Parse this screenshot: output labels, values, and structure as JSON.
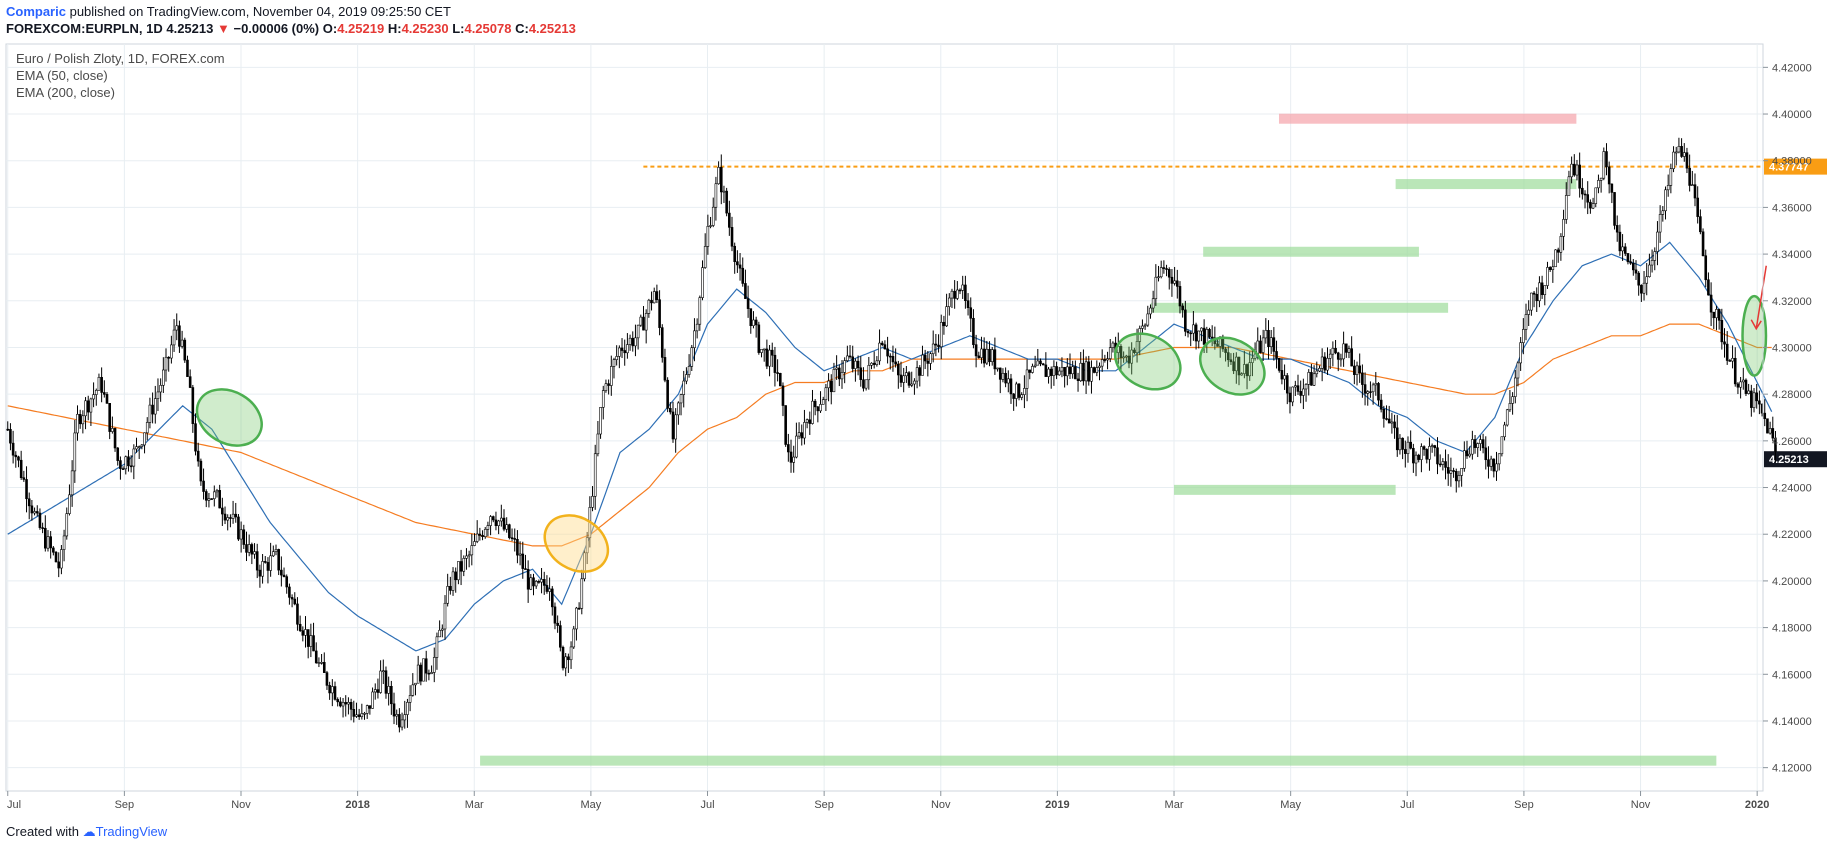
{
  "header": {
    "author": "Comparic",
    "published": "published on TradingView.com, November 04, 2019 09:25:50 CET"
  },
  "quote": {
    "symbol": "FOREXCOM:EURPLN, 1D",
    "last": "4.25213",
    "change": "−0.00006 (0%)",
    "o_label": "O:",
    "o": "4.25219",
    "h_label": "H:",
    "h": "4.25230",
    "l_label": "L:",
    "l": "4.25078",
    "c_label": "C:",
    "c": "4.25213"
  },
  "legend": {
    "title": "Euro / Polish Zloty, 1D, FOREX.com",
    "ema50": "EMA (50, close)",
    "ema200": "EMA (200, close)"
  },
  "footer": {
    "created": "Created with",
    "brand": "TradingView"
  },
  "colors": {
    "candle": "#000000",
    "ema50": "#2e6fb5",
    "ema200": "#f57c21",
    "grid": "#e8eef2",
    "zone_green": "#9ddc9a",
    "zone_red": "#f5a3aa",
    "hline": "#f99d14",
    "arrow": "#e53935"
  },
  "chart_data": {
    "type": "candlestick",
    "y_range": [
      4.11,
      4.43
    ],
    "y_ticks": [
      "4.42000",
      "4.40000",
      "4.38000",
      "4.36000",
      "4.34000",
      "4.32000",
      "4.30000",
      "4.28000",
      "4.26000",
      "4.24000",
      "4.22000",
      "4.20000",
      "4.18000",
      "4.16000",
      "4.14000",
      "4.12000"
    ],
    "x_ticks": [
      "Jul",
      "Sep",
      "Nov",
      "2018",
      "Mar",
      "May",
      "Jul",
      "Sep",
      "Nov",
      "2019",
      "Mar",
      "May",
      "Jul",
      "Sep",
      "Nov",
      "2020"
    ],
    "x_tick_months": [
      -6,
      -4,
      -2,
      0,
      2,
      4,
      6,
      8,
      10,
      12,
      14,
      16,
      18,
      20,
      22,
      24
    ],
    "x_range_months": [
      -6.03,
      24.1
    ],
    "price_anchors": [
      [
        -6.0,
        4.265
      ],
      [
        -5.5,
        4.225
      ],
      [
        -5.1,
        4.205
      ],
      [
        -4.8,
        4.27
      ],
      [
        -4.4,
        4.285
      ],
      [
        -4.1,
        4.25
      ],
      [
        -3.8,
        4.255
      ],
      [
        -3.3,
        4.29
      ],
      [
        -3.1,
        4.31
      ],
      [
        -2.9,
        4.285
      ],
      [
        -2.7,
        4.24
      ],
      [
        -2.4,
        4.235
      ],
      [
        -2.0,
        4.22
      ],
      [
        -1.7,
        4.205
      ],
      [
        -1.4,
        4.21
      ],
      [
        -1.1,
        4.19
      ],
      [
        -0.6,
        4.16
      ],
      [
        -0.3,
        4.15
      ],
      [
        0.1,
        4.14
      ],
      [
        0.4,
        4.16
      ],
      [
        0.7,
        4.14
      ],
      [
        1.0,
        4.16
      ],
      [
        1.3,
        4.165
      ],
      [
        1.6,
        4.2
      ],
      [
        1.9,
        4.21
      ],
      [
        2.3,
        4.23
      ],
      [
        2.7,
        4.215
      ],
      [
        3.0,
        4.195
      ],
      [
        3.3,
        4.2
      ],
      [
        3.5,
        4.165
      ],
      [
        3.7,
        4.175
      ],
      [
        3.9,
        4.21
      ],
      [
        4.2,
        4.28
      ],
      [
        4.5,
        4.3
      ],
      [
        4.8,
        4.305
      ],
      [
        5.1,
        4.325
      ],
      [
        5.4,
        4.26
      ],
      [
        5.8,
        4.31
      ],
      [
        6.0,
        4.35
      ],
      [
        6.2,
        4.375
      ],
      [
        6.35,
        4.355
      ],
      [
        6.6,
        4.325
      ],
      [
        6.9,
        4.3
      ],
      [
        7.2,
        4.29
      ],
      [
        7.4,
        4.25
      ],
      [
        7.7,
        4.27
      ],
      [
        8.0,
        4.28
      ],
      [
        8.4,
        4.295
      ],
      [
        8.7,
        4.285
      ],
      [
        9.0,
        4.305
      ],
      [
        9.3,
        4.285
      ],
      [
        9.6,
        4.29
      ],
      [
        9.9,
        4.3
      ],
      [
        10.3,
        4.33
      ],
      [
        10.6,
        4.3
      ],
      [
        10.9,
        4.295
      ],
      [
        11.3,
        4.28
      ],
      [
        11.6,
        4.29
      ],
      [
        11.9,
        4.29
      ],
      [
        12.2,
        4.29
      ],
      [
        12.6,
        4.29
      ],
      [
        12.9,
        4.3
      ],
      [
        13.2,
        4.295
      ],
      [
        13.5,
        4.31
      ],
      [
        13.8,
        4.335
      ],
      [
        14.0,
        4.33
      ],
      [
        14.2,
        4.31
      ],
      [
        14.5,
        4.305
      ],
      [
        14.8,
        4.3
      ],
      [
        15.2,
        4.29
      ],
      [
        15.6,
        4.305
      ],
      [
        16.0,
        4.28
      ],
      [
        16.3,
        4.285
      ],
      [
        16.6,
        4.295
      ],
      [
        16.9,
        4.3
      ],
      [
        17.2,
        4.285
      ],
      [
        17.5,
        4.28
      ],
      [
        17.8,
        4.26
      ],
      [
        18.1,
        4.255
      ],
      [
        18.4,
        4.255
      ],
      [
        18.8,
        4.245
      ],
      [
        19.1,
        4.26
      ],
      [
        19.5,
        4.25
      ],
      [
        19.8,
        4.28
      ],
      [
        20.1,
        4.32
      ],
      [
        20.4,
        4.33
      ],
      [
        20.6,
        4.345
      ],
      [
        20.8,
        4.38
      ],
      [
        21.0,
        4.37
      ],
      [
        21.2,
        4.36
      ],
      [
        21.4,
        4.385
      ],
      [
        21.6,
        4.345
      ],
      [
        21.8,
        4.335
      ],
      [
        22.0,
        4.325
      ],
      [
        22.2,
        4.34
      ],
      [
        22.4,
        4.36
      ],
      [
        22.6,
        4.385
      ],
      [
        22.8,
        4.38
      ],
      [
        23.0,
        4.35
      ],
      [
        23.2,
        4.32
      ],
      [
        23.4,
        4.305
      ],
      [
        23.6,
        4.29
      ],
      [
        23.8,
        4.28
      ],
      [
        24.0,
        4.275
      ],
      [
        24.2,
        4.265
      ],
      [
        24.35,
        4.252
      ]
    ],
    "ema50_anchors": [
      [
        -6.0,
        4.22
      ],
      [
        -5.0,
        4.235
      ],
      [
        -4.0,
        4.25
      ],
      [
        -3.0,
        4.275
      ],
      [
        -2.5,
        4.265
      ],
      [
        -2.0,
        4.245
      ],
      [
        -1.5,
        4.225
      ],
      [
        -1.0,
        4.21
      ],
      [
        -0.5,
        4.195
      ],
      [
        0.0,
        4.185
      ],
      [
        1.0,
        4.17
      ],
      [
        1.5,
        4.175
      ],
      [
        2.0,
        4.19
      ],
      [
        2.5,
        4.2
      ],
      [
        3.0,
        4.205
      ],
      [
        3.5,
        4.19
      ],
      [
        4.0,
        4.22
      ],
      [
        4.5,
        4.255
      ],
      [
        5.0,
        4.265
      ],
      [
        5.5,
        4.28
      ],
      [
        6.0,
        4.31
      ],
      [
        6.5,
        4.325
      ],
      [
        7.0,
        4.315
      ],
      [
        7.5,
        4.3
      ],
      [
        8.0,
        4.29
      ],
      [
        8.5,
        4.295
      ],
      [
        9.0,
        4.3
      ],
      [
        9.5,
        4.295
      ],
      [
        10.0,
        4.3
      ],
      [
        10.5,
        4.305
      ],
      [
        11.0,
        4.3
      ],
      [
        11.5,
        4.295
      ],
      [
        12.0,
        4.295
      ],
      [
        12.5,
        4.29
      ],
      [
        13.0,
        4.29
      ],
      [
        13.5,
        4.3
      ],
      [
        14.0,
        4.31
      ],
      [
        14.5,
        4.305
      ],
      [
        15.0,
        4.3
      ],
      [
        15.5,
        4.295
      ],
      [
        16.0,
        4.295
      ],
      [
        16.5,
        4.29
      ],
      [
        17.0,
        4.285
      ],
      [
        17.5,
        4.275
      ],
      [
        18.0,
        4.27
      ],
      [
        18.5,
        4.26
      ],
      [
        19.0,
        4.255
      ],
      [
        19.5,
        4.27
      ],
      [
        20.0,
        4.3
      ],
      [
        20.5,
        4.32
      ],
      [
        21.0,
        4.335
      ],
      [
        21.5,
        4.34
      ],
      [
        22.0,
        4.335
      ],
      [
        22.5,
        4.345
      ],
      [
        23.0,
        4.33
      ],
      [
        23.5,
        4.31
      ],
      [
        24.0,
        4.285
      ],
      [
        24.3,
        4.27
      ]
    ],
    "ema200_anchors": [
      [
        -6.0,
        4.275
      ],
      [
        -5.0,
        4.27
      ],
      [
        -4.0,
        4.265
      ],
      [
        -3.0,
        4.26
      ],
      [
        -2.0,
        4.255
      ],
      [
        -1.0,
        4.245
      ],
      [
        0.0,
        4.235
      ],
      [
        1.0,
        4.225
      ],
      [
        2.0,
        4.22
      ],
      [
        3.0,
        4.215
      ],
      [
        3.5,
        4.215
      ],
      [
        4.0,
        4.22
      ],
      [
        4.5,
        4.23
      ],
      [
        5.0,
        4.24
      ],
      [
        5.5,
        4.255
      ],
      [
        6.0,
        4.265
      ],
      [
        6.5,
        4.27
      ],
      [
        7.0,
        4.28
      ],
      [
        7.5,
        4.285
      ],
      [
        8.0,
        4.285
      ],
      [
        8.5,
        4.29
      ],
      [
        9.0,
        4.29
      ],
      [
        9.5,
        4.295
      ],
      [
        10.0,
        4.295
      ],
      [
        11.0,
        4.295
      ],
      [
        12.0,
        4.295
      ],
      [
        13.0,
        4.295
      ],
      [
        14.0,
        4.3
      ],
      [
        15.0,
        4.3
      ],
      [
        16.0,
        4.295
      ],
      [
        17.0,
        4.29
      ],
      [
        18.0,
        4.285
      ],
      [
        19.0,
        4.28
      ],
      [
        19.5,
        4.28
      ],
      [
        20.0,
        4.285
      ],
      [
        20.5,
        4.295
      ],
      [
        21.0,
        4.3
      ],
      [
        21.5,
        4.305
      ],
      [
        22.0,
        4.305
      ],
      [
        22.5,
        4.31
      ],
      [
        23.0,
        4.31
      ],
      [
        23.5,
        4.305
      ],
      [
        24.0,
        4.3
      ],
      [
        24.3,
        4.3
      ]
    ],
    "horizontal_line": {
      "value": 4.37747,
      "label": "4.37747",
      "from_month": 4.9
    },
    "last_price": {
      "value": 4.25213,
      "label": "4.25213"
    },
    "zones": [
      {
        "color": "green",
        "y": 4.123,
        "x0": 2.1,
        "x1": 23.3
      },
      {
        "color": "red",
        "y": 4.398,
        "x0": 15.8,
        "x1": 20.9
      },
      {
        "color": "green",
        "y": 4.37,
        "x0": 17.8,
        "x1": 20.9
      },
      {
        "color": "green",
        "y": 4.341,
        "x0": 14.5,
        "x1": 18.2
      },
      {
        "color": "green",
        "y": 4.317,
        "x0": 13.6,
        "x1": 18.7
      },
      {
        "color": "green",
        "y": 4.239,
        "x0": 14.0,
        "x1": 17.8
      }
    ],
    "ellipses": [
      {
        "color": "green",
        "x": -2.2,
        "y": 4.27,
        "rx": 1.02,
        "ry": 0.011,
        "rot": 30
      },
      {
        "color": "orange",
        "x": 3.75,
        "y": 4.216,
        "rx": 1.0,
        "ry": 0.011,
        "rot": 32
      },
      {
        "color": "green",
        "x": 13.55,
        "y": 4.294,
        "rx": 1.02,
        "ry": 0.011,
        "rot": 28
      },
      {
        "color": "green",
        "x": 15.0,
        "y": 4.292,
        "rx": 1.02,
        "ry": 0.011,
        "rot": 32
      },
      {
        "color": "green",
        "x": 23.95,
        "y": 4.305,
        "rx": 0.35,
        "ry": 0.017,
        "rot": 0
      }
    ],
    "arrow": {
      "from_x": 23.95,
      "from_y": 4.335,
      "to_x": 23.95,
      "to_y": 4.308
    }
  }
}
